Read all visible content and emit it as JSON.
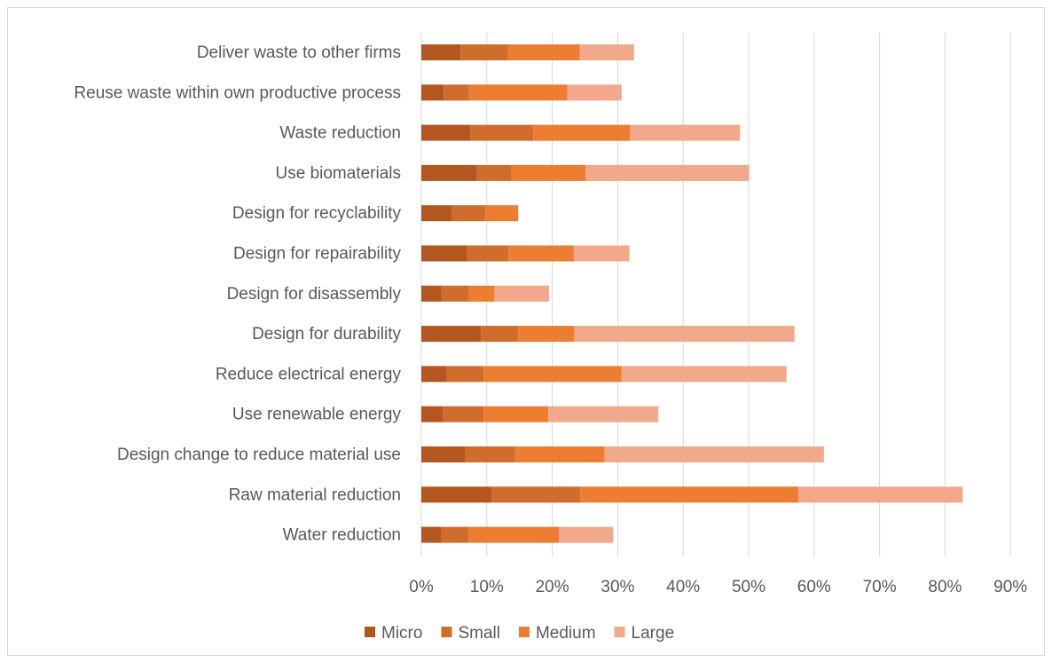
{
  "chart_data": {
    "type": "bar",
    "orientation": "horizontal",
    "stacked": true,
    "categories": [
      "Deliver waste to other firms",
      "Reuse waste within own productive process",
      "Waste reduction",
      "Use biomaterials",
      "Design for recyclability",
      "Design for repairability",
      "Design for disassembly",
      "Design for durability",
      "Reduce electrical energy",
      "Use renewable energy",
      "Design change to reduce material use",
      "Raw material reduction",
      "Water reduction"
    ],
    "series": [
      {
        "name": "Micro",
        "color": "#b4561f",
        "values": [
          6.0,
          3.4,
          7.5,
          8.4,
          4.6,
          7.0,
          3.1,
          9.1,
          3.9,
          3.3,
          6.7,
          10.7,
          3.1
        ]
      },
      {
        "name": "Small",
        "color": "#d06d2d",
        "values": [
          7.2,
          3.9,
          9.6,
          5.4,
          5.2,
          6.3,
          4.2,
          5.7,
          5.6,
          6.2,
          7.6,
          13.6,
          4.1
        ]
      },
      {
        "name": "Medium",
        "color": "#ed7d31",
        "values": [
          11.0,
          15.0,
          14.8,
          11.3,
          5.0,
          10.0,
          3.9,
          8.6,
          21.1,
          9.9,
          13.7,
          33.3,
          13.8
        ]
      },
      {
        "name": "Large",
        "color": "#f2a98b",
        "values": [
          8.3,
          8.3,
          16.8,
          25.0,
          0.0,
          8.5,
          8.3,
          33.6,
          25.2,
          16.8,
          33.5,
          25.1,
          8.3
        ]
      }
    ],
    "xlim": [
      0,
      90
    ],
    "xticks": [
      "0%",
      "10%",
      "20%",
      "30%",
      "40%",
      "50%",
      "60%",
      "70%",
      "80%",
      "90%"
    ],
    "xtick_values": [
      0,
      10,
      20,
      30,
      40,
      50,
      60,
      70,
      80,
      90
    ],
    "grid": "vertical",
    "legend_position": "bottom",
    "title": "",
    "xlabel": "",
    "ylabel": ""
  }
}
